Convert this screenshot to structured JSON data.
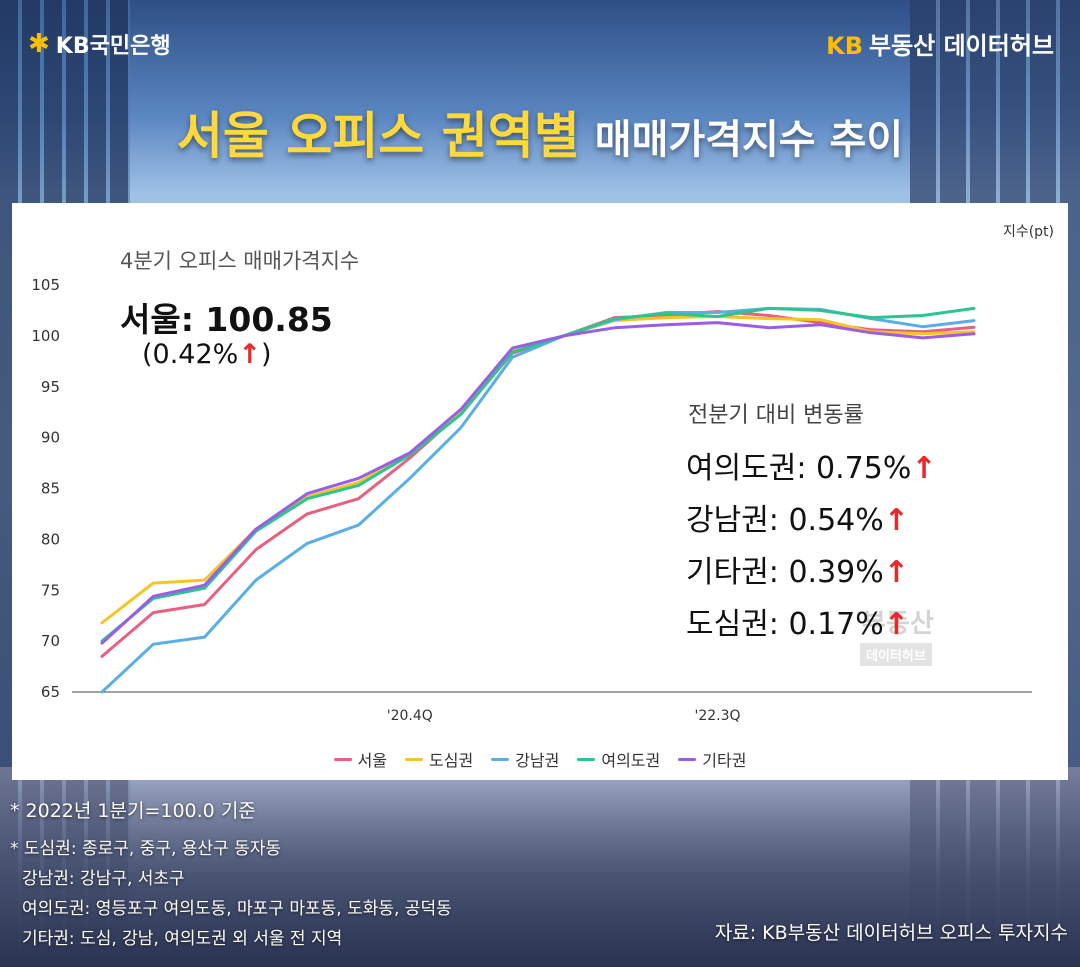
{
  "header": {
    "kb_bank": "KB국민은행",
    "hub_brand_kb": "KB",
    "hub_brand_rest": "부동산 데이터허브"
  },
  "title": {
    "main": "서울 오피스 권역별",
    "sub": "매매가격지수 추이"
  },
  "annotations": {
    "unit": "지수(pt)",
    "q4_title": "4분기 오피스 매매가격지수",
    "seoul_label": "서울: 100.85",
    "seoul_change": "(0.42%",
    "seoul_close": ")",
    "arrow": "↑",
    "dod_title": "전분기 대비 변동률",
    "dod_items": [
      "여의도권: 0.75%",
      "강남권: 0.54%",
      "기타권: 0.39%",
      "도심권: 0.17%"
    ],
    "watermark": "부동산",
    "watermark_sub": "데이터허브"
  },
  "footnotes": [
    "* 2022년 1분기=100.0 기준",
    "* 도심권: 종로구, 중구, 용산구 동자동",
    "강남권: 강남구, 서초구",
    "여의도권: 영등포구 여의도동, 마포구 마포동, 도화동, 공덕동",
    "기타권: 도심, 강남, 여의도권 외 서울 전 지역"
  ],
  "source": "자료: KB부동산 데이터허브 오피스 투자지수",
  "colors": {
    "seoul": "#e86080",
    "dosim": "#f5c528",
    "gangnam": "#5aaee6",
    "yeouido": "#2ec48e",
    "gita": "#9b5de5",
    "arrow": "#e8282b"
  },
  "chart_data": {
    "type": "line",
    "x": [
      "",
      "",
      "",
      "",
      "",
      "",
      "'20.4Q",
      "",
      "",
      "",
      "",
      "",
      "'22.3Q",
      "",
      "",
      "",
      "",
      ""
    ],
    "x_tick_labels": [
      "'20.4Q",
      "'22.3Q"
    ],
    "ylim": [
      65,
      105
    ],
    "y_ticks": [
      65,
      70,
      75,
      80,
      85,
      90,
      95,
      100,
      105
    ],
    "ylabel": "지수(pt)",
    "grid": false,
    "legend_position": "bottom",
    "series": [
      {
        "name": "서울",
        "color": "#e86080",
        "values": [
          68.5,
          72.8,
          73.6,
          79.0,
          82.5,
          84.0,
          88.0,
          92.5,
          98.3,
          100.0,
          101.8,
          102.0,
          102.4,
          102.0,
          101.3,
          100.6,
          100.4,
          100.85
        ]
      },
      {
        "name": "도심권",
        "color": "#f5c528",
        "values": [
          71.8,
          75.7,
          76.0,
          81.0,
          84.2,
          85.6,
          88.5,
          92.5,
          98.6,
          100.0,
          101.5,
          101.8,
          101.9,
          101.7,
          101.6,
          100.4,
          100.2,
          100.4
        ]
      },
      {
        "name": "강남권",
        "color": "#5aaee6",
        "values": [
          65.0,
          69.7,
          70.4,
          76.0,
          79.6,
          81.4,
          86.0,
          91.0,
          97.9,
          100.0,
          101.6,
          102.3,
          102.3,
          102.7,
          102.6,
          101.7,
          100.9,
          101.5
        ]
      },
      {
        "name": "여의도권",
        "color": "#2ec48e",
        "values": [
          70.0,
          74.2,
          75.2,
          80.8,
          84.0,
          85.3,
          88.3,
          92.3,
          98.4,
          100.0,
          101.7,
          102.2,
          101.9,
          102.7,
          102.5,
          101.8,
          102.0,
          102.7
        ]
      },
      {
        "name": "기타권",
        "color": "#9b5de5",
        "values": [
          69.8,
          74.4,
          75.5,
          81.0,
          84.5,
          86.0,
          88.5,
          92.8,
          98.8,
          100.0,
          100.8,
          101.1,
          101.3,
          100.8,
          101.1,
          100.3,
          99.8,
          100.2
        ]
      }
    ]
  }
}
